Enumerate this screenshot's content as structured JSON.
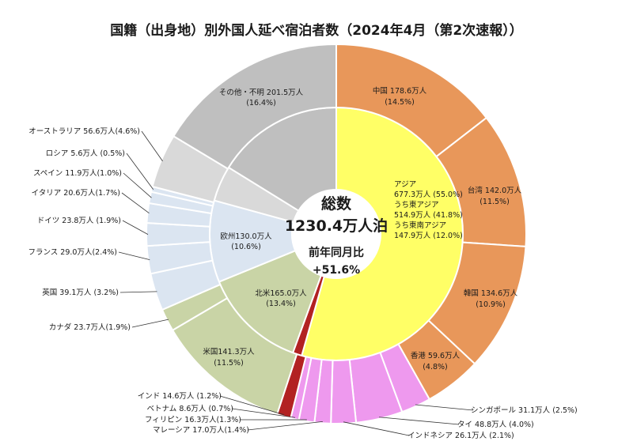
{
  "chart_data": {
    "type": "pie",
    "subtype": "nested-donut",
    "title": "国籍（出身地）別外国人延べ宿泊者数（2024年4月（第2次速報））",
    "center": {
      "line1": "総数",
      "line2": "1230.4万人泊",
      "line3": "前年同月比",
      "line4": "+51.6%"
    },
    "inner": [
      {
        "id": "asia",
        "lines": [
          "アジア",
          "677.3万人 (55.0%)",
          "うち東アジア",
          "514.9万人 (41.8%)",
          "うち東南アジア",
          "147.9万人 (12.0%)"
        ],
        "value": 677.3,
        "color": "#ffff66"
      },
      {
        "id": "india",
        "lines": [],
        "value": 14.6,
        "color": "#b22222"
      },
      {
        "id": "namerica",
        "lines": [
          "北米165.0万人",
          "(13.4%)"
        ],
        "value": 165.0,
        "color": "#c9d4a6"
      },
      {
        "id": "europe",
        "lines": [
          "欧州130.0万人",
          "(10.6%)"
        ],
        "value": 130.0,
        "color": "#dbe5f1"
      },
      {
        "id": "oceania",
        "lines": [],
        "value": 56.6,
        "color": "#d9d9d9"
      },
      {
        "id": "other",
        "lines": [
          "その他・不明 201.5万人",
          "(16.4%)"
        ],
        "value": 201.5,
        "color": "#bfbfbf"
      }
    ],
    "outer": [
      {
        "id": "china",
        "label": "中国 178.6万人",
        "label2": "(14.5%)",
        "value": 178.6,
        "color": "#e8975a"
      },
      {
        "id": "taiwan",
        "label": "台湾 142.0万人",
        "label2": "(11.5%)",
        "value": 142.0,
        "color": "#e8975a"
      },
      {
        "id": "korea",
        "label": "韓国 134.6万人",
        "label2": "(10.9%)",
        "value": 134.6,
        "color": "#e8975a"
      },
      {
        "id": "hongkong",
        "label": "香港 59.6万人",
        "label2": "(4.8%)",
        "value": 59.6,
        "color": "#e8975a"
      },
      {
        "id": "singapore",
        "label": "シンガポール 31.1万人 (2.5%)",
        "value": 31.1,
        "color": "#ee99ee"
      },
      {
        "id": "thailand",
        "label": "タイ 48.8万人 (4.0%)",
        "value": 48.8,
        "color": "#ee99ee"
      },
      {
        "id": "indonesia",
        "label": "インドネシア 26.1万人 (2.1%)",
        "value": 26.1,
        "color": "#ee99ee"
      },
      {
        "id": "malaysia",
        "label": "マレーシア 17.0万人(1.4%)",
        "value": 17.0,
        "color": "#ee99ee"
      },
      {
        "id": "philippines",
        "label": "フィリピン 16.3万人(1.3%)",
        "value": 16.3,
        "color": "#ee99ee"
      },
      {
        "id": "vietnam",
        "label": "ベトナム 8.6万人 (0.7%)",
        "value": 8.6,
        "color": "#ee99ee"
      },
      {
        "id": "india",
        "label": "インド 14.6万人 (1.2%)",
        "value": 14.6,
        "color": "#b22222"
      },
      {
        "id": "usa",
        "label": "米国141.3万人",
        "label2": "(11.5%)",
        "value": 141.3,
        "color": "#c9d4a6"
      },
      {
        "id": "canada",
        "label": "カナダ 23.7万人(1.9%)",
        "value": 23.7,
        "color": "#c9d4a6"
      },
      {
        "id": "uk",
        "label": "英国 39.1万人 (3.2%)",
        "value": 39.1,
        "color": "#dbe5f1"
      },
      {
        "id": "france",
        "label": "フランス 29.0万人(2.4%)",
        "value": 29.0,
        "color": "#dbe5f1"
      },
      {
        "id": "germany",
        "label": "ドイツ 23.8万人 (1.9%)",
        "value": 23.8,
        "color": "#dbe5f1"
      },
      {
        "id": "italy",
        "label": "イタリア 20.6万人(1.7%)",
        "value": 20.6,
        "color": "#dbe5f1"
      },
      {
        "id": "spain",
        "label": "スペイン 11.9万人(1.0%)",
        "value": 11.9,
        "color": "#dbe5f1"
      },
      {
        "id": "russia",
        "label": "ロシア 5.6万人 (0.5%)",
        "value": 5.6,
        "color": "#dbe5f1"
      },
      {
        "id": "australia",
        "label": "オーストラリア 56.6万人(4.6%)",
        "value": 56.6,
        "color": "#d9d9d9"
      },
      {
        "id": "other",
        "label": "",
        "value": 201.5,
        "color": "#bfbfbf"
      }
    ]
  }
}
